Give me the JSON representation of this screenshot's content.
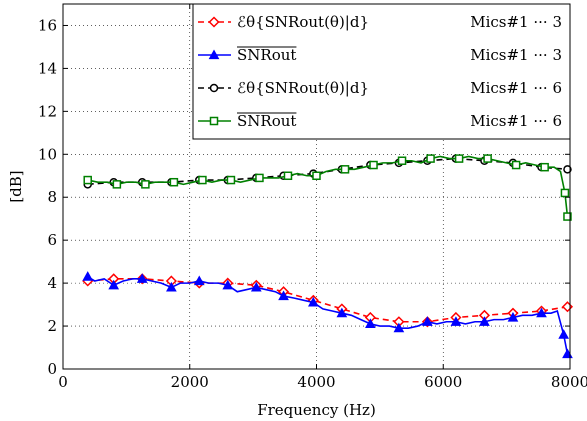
{
  "chart_data": {
    "type": "line",
    "title": "",
    "xlabel": "Frequency (Hz)",
    "ylabel": "[dB]",
    "xlim": [
      0,
      8000
    ],
    "ylim": [
      0,
      17
    ],
    "xticks": [
      "0",
      "2000",
      "4000",
      "6000",
      "8000"
    ],
    "yticks": [
      "0",
      "2",
      "4",
      "6",
      "8",
      "10",
      "12",
      "14",
      "16"
    ],
    "grid": true,
    "legend_position": "top-right",
    "series": [
      {
        "name": "-ℰθ{SNRout(θ)|d}  Mics#1···3",
        "legend_label": "ℰθ{SNRout(θ)|d}",
        "legend_mics": "Mics#1 ··· 3",
        "color": "#ff0000",
        "line": "dashed",
        "marker": "diamond",
        "x": [
          390,
          800,
          1250,
          1710,
          2150,
          2600,
          3050,
          3480,
          3950,
          4400,
          4850,
          5300,
          5750,
          6200,
          6650,
          7100,
          7550,
          7960
        ],
        "y": [
          4.1,
          4.2,
          4.2,
          4.1,
          4.0,
          4.0,
          3.9,
          3.6,
          3.2,
          2.8,
          2.4,
          2.2,
          2.2,
          2.4,
          2.5,
          2.6,
          2.7,
          2.9
        ]
      },
      {
        "name": "SNRout  Mics#1···3",
        "legend_label": "SNRout",
        "legend_mics": "Mics#1 ··· 3",
        "color": "#0000ff",
        "line": "solid",
        "marker": "triangle",
        "x": [
          390,
          500,
          650,
          800,
          950,
          1100,
          1250,
          1400,
          1550,
          1710,
          1850,
          2000,
          2150,
          2300,
          2450,
          2600,
          2750,
          2900,
          3050,
          3200,
          3350,
          3480,
          3650,
          3800,
          3950,
          4100,
          4250,
          4400,
          4550,
          4700,
          4850,
          5000,
          5150,
          5300,
          5450,
          5600,
          5750,
          5900,
          6050,
          6200,
          6350,
          6500,
          6650,
          6800,
          6950,
          7100,
          7250,
          7400,
          7550,
          7700,
          7800,
          7900,
          7960
        ],
        "y": [
          4.3,
          4.1,
          4.2,
          3.9,
          4.1,
          4.2,
          4.2,
          4.1,
          4.0,
          3.8,
          4.0,
          4.0,
          4.1,
          4.0,
          4.0,
          3.9,
          3.6,
          3.7,
          3.8,
          3.7,
          3.6,
          3.4,
          3.3,
          3.2,
          3.1,
          2.8,
          2.7,
          2.6,
          2.5,
          2.3,
          2.1,
          2.0,
          2.0,
          1.9,
          1.9,
          2.0,
          2.2,
          2.1,
          2.2,
          2.2,
          2.1,
          2.2,
          2.2,
          2.3,
          2.3,
          2.4,
          2.5,
          2.5,
          2.6,
          2.6,
          2.7,
          1.6,
          0.7
        ]
      },
      {
        "name": "-ℰθ{SNRout(θ)|d}  Mics#1···6",
        "legend_label": "ℰθ{SNRout(θ)|d}",
        "legend_mics": "Mics#1 ··· 6",
        "color": "#000000",
        "line": "dashed",
        "marker": "circle",
        "x": [
          390,
          800,
          1250,
          1710,
          2150,
          2600,
          3050,
          3480,
          3950,
          4400,
          4850,
          5300,
          5750,
          6200,
          6650,
          7100,
          7550,
          7960
        ],
        "y": [
          8.6,
          8.7,
          8.7,
          8.7,
          8.8,
          8.8,
          8.9,
          9.0,
          9.1,
          9.3,
          9.5,
          9.6,
          9.7,
          9.8,
          9.7,
          9.6,
          9.4,
          9.3
        ]
      },
      {
        "name": "SNRout  Mics#1···6",
        "legend_label": "SNRout",
        "legend_mics": "Mics#1 ··· 6",
        "color": "#008000",
        "line": "solid",
        "marker": "square",
        "x": [
          390,
          550,
          700,
          850,
          1000,
          1150,
          1300,
          1450,
          1600,
          1750,
          1900,
          2050,
          2200,
          2350,
          2500,
          2650,
          2800,
          2950,
          3100,
          3250,
          3400,
          3550,
          3700,
          3850,
          4000,
          4150,
          4300,
          4450,
          4600,
          4750,
          4900,
          5050,
          5200,
          5350,
          5500,
          5650,
          5800,
          5950,
          6100,
          6250,
          6400,
          6550,
          6700,
          6850,
          7000,
          7150,
          7300,
          7450,
          7600,
          7750,
          7850,
          7920,
          7960
        ],
        "y": [
          8.8,
          8.7,
          8.7,
          8.6,
          8.7,
          8.7,
          8.6,
          8.7,
          8.7,
          8.7,
          8.6,
          8.7,
          8.8,
          8.7,
          8.8,
          8.8,
          8.7,
          8.8,
          8.9,
          8.9,
          8.9,
          9.0,
          9.1,
          9.0,
          9.0,
          9.2,
          9.3,
          9.3,
          9.3,
          9.4,
          9.5,
          9.6,
          9.6,
          9.7,
          9.7,
          9.6,
          9.8,
          9.9,
          9.8,
          9.8,
          9.9,
          9.8,
          9.8,
          9.7,
          9.6,
          9.5,
          9.6,
          9.5,
          9.4,
          9.4,
          9.2,
          8.2,
          7.1
        ]
      }
    ]
  }
}
